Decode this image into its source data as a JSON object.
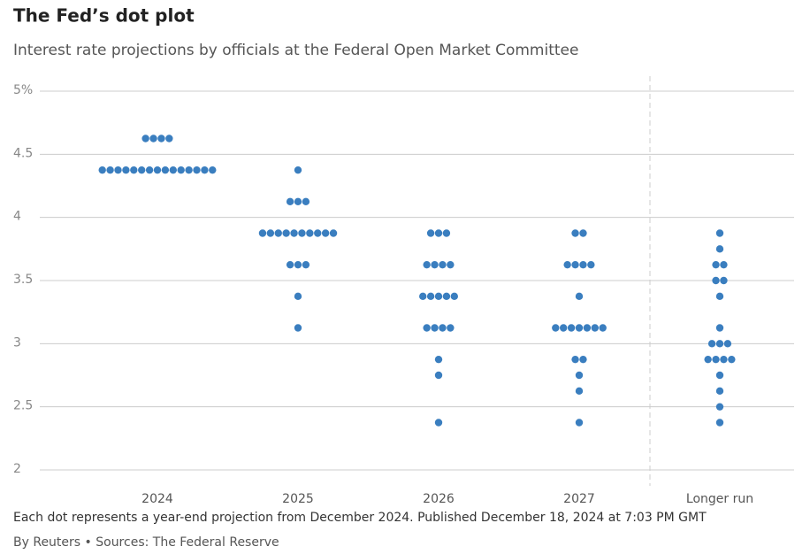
{
  "chart_data": {
    "type": "dot",
    "title": "The Fed’s dot plot",
    "subtitle": "Interest rate projections by officials at the Federal Open Market Committee",
    "categories": [
      "2024",
      "2025",
      "2026",
      "2027",
      "Longer run"
    ],
    "dots": [
      [
        4.625,
        4.625,
        4.625,
        4.625,
        4.375,
        4.375,
        4.375,
        4.375,
        4.375,
        4.375,
        4.375,
        4.375,
        4.375,
        4.375,
        4.375,
        4.375,
        4.375,
        4.375,
        4.375
      ],
      [
        4.375,
        4.125,
        4.125,
        4.125,
        3.875,
        3.875,
        3.875,
        3.875,
        3.875,
        3.875,
        3.875,
        3.875,
        3.875,
        3.875,
        3.625,
        3.625,
        3.625,
        3.375,
        3.125
      ],
      [
        3.875,
        3.875,
        3.875,
        3.625,
        3.625,
        3.625,
        3.625,
        3.375,
        3.375,
        3.375,
        3.375,
        3.375,
        3.125,
        3.125,
        3.125,
        3.125,
        2.875,
        2.75,
        2.375
      ],
      [
        3.875,
        3.875,
        3.625,
        3.625,
        3.625,
        3.625,
        3.375,
        3.125,
        3.125,
        3.125,
        3.125,
        3.125,
        3.125,
        3.125,
        2.875,
        2.875,
        2.75,
        2.625,
        2.375
      ],
      [
        3.875,
        3.75,
        3.625,
        3.625,
        3.5,
        3.5,
        3.375,
        3.125,
        3.0,
        3.0,
        3.0,
        2.875,
        2.875,
        2.875,
        2.875,
        2.75,
        2.625,
        2.5,
        2.375
      ]
    ],
    "color": "#3a7ebf",
    "ylim": [
      2,
      5
    ],
    "yticks": [
      2,
      2.5,
      3,
      3.5,
      4,
      4.5,
      {
        "value": 5,
        "label": "5%"
      }
    ],
    "grid": true,
    "note": "Each dot represents a year-end projection from December 2024. Published December 18, 2024 at 7:03 PM GMT",
    "source": "By Reuters • Sources: The Federal Reserve"
  }
}
